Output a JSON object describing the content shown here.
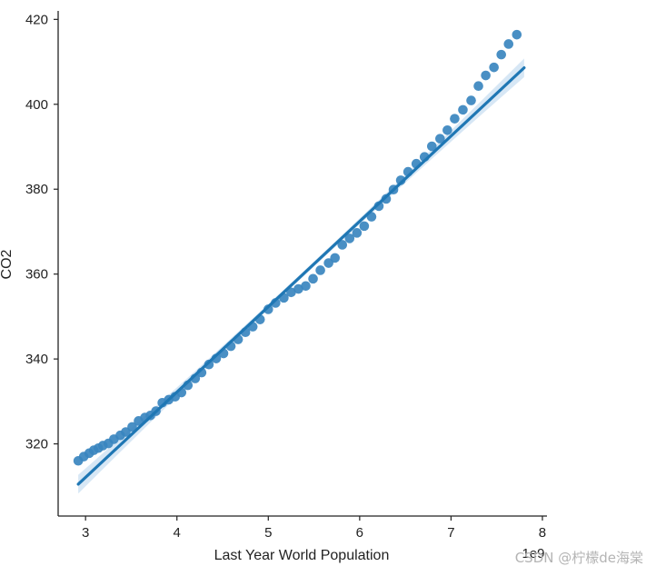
{
  "chart_data": {
    "type": "scatter",
    "xlabel": "Last Year World Population",
    "ylabel": "CO2",
    "x_offset_label": "1e9",
    "xlim": [
      2.7,
      8.05
    ],
    "ylim": [
      303,
      422
    ],
    "x_ticks": [
      3,
      4,
      5,
      6,
      7,
      8
    ],
    "y_ticks": [
      320,
      340,
      360,
      380,
      400,
      420
    ],
    "grid": false,
    "series": [
      {
        "points": [
          [
            2.92,
            316.0
          ],
          [
            2.98,
            317.0
          ],
          [
            3.04,
            317.8
          ],
          [
            3.09,
            318.5
          ],
          [
            3.14,
            319.0
          ],
          [
            3.19,
            319.6
          ],
          [
            3.25,
            320.1
          ],
          [
            3.31,
            321.1
          ],
          [
            3.38,
            322.0
          ],
          [
            3.44,
            322.8
          ],
          [
            3.51,
            324.0
          ],
          [
            3.58,
            325.4
          ],
          [
            3.65,
            326.2
          ],
          [
            3.71,
            326.7
          ],
          [
            3.77,
            327.7
          ],
          [
            3.84,
            329.7
          ],
          [
            3.91,
            330.4
          ],
          [
            3.98,
            331.1
          ],
          [
            4.05,
            332.1
          ],
          [
            4.12,
            333.8
          ],
          [
            4.2,
            335.4
          ],
          [
            4.27,
            336.8
          ],
          [
            4.35,
            338.7
          ],
          [
            4.43,
            340.1
          ],
          [
            4.51,
            341.3
          ],
          [
            4.59,
            343.0
          ],
          [
            4.67,
            344.6
          ],
          [
            4.75,
            346.3
          ],
          [
            4.83,
            347.6
          ],
          [
            4.91,
            349.3
          ],
          [
            5.0,
            351.7
          ],
          [
            5.08,
            353.2
          ],
          [
            5.17,
            354.4
          ],
          [
            5.25,
            355.7
          ],
          [
            5.33,
            356.5
          ],
          [
            5.41,
            357.2
          ],
          [
            5.49,
            358.9
          ],
          [
            5.57,
            360.9
          ],
          [
            5.66,
            362.6
          ],
          [
            5.73,
            363.8
          ],
          [
            5.81,
            366.9
          ],
          [
            5.89,
            368.4
          ],
          [
            5.97,
            369.7
          ],
          [
            6.05,
            371.3
          ],
          [
            6.13,
            373.5
          ],
          [
            6.21,
            376.0
          ],
          [
            6.29,
            377.7
          ],
          [
            6.37,
            379.9
          ],
          [
            6.45,
            382.1
          ],
          [
            6.53,
            384.1
          ],
          [
            6.62,
            386.0
          ],
          [
            6.71,
            387.6
          ],
          [
            6.79,
            390.1
          ],
          [
            6.88,
            391.9
          ],
          [
            6.96,
            393.9
          ],
          [
            7.04,
            396.6
          ],
          [
            7.13,
            398.7
          ],
          [
            7.22,
            400.9
          ],
          [
            7.3,
            404.3
          ],
          [
            7.38,
            406.8
          ],
          [
            7.47,
            408.7
          ],
          [
            7.55,
            411.7
          ],
          [
            7.63,
            414.2
          ],
          [
            7.72,
            416.4
          ]
        ]
      }
    ],
    "regression_line": {
      "x": [
        2.92,
        7.8
      ],
      "y": [
        310.5,
        408.6
      ]
    },
    "colors": {
      "point": "#3a86bf",
      "line": "#1f77b4",
      "band": "#bcd7ee",
      "axis": "#222222"
    }
  },
  "watermark": "CSDN @柠檬de海棠"
}
